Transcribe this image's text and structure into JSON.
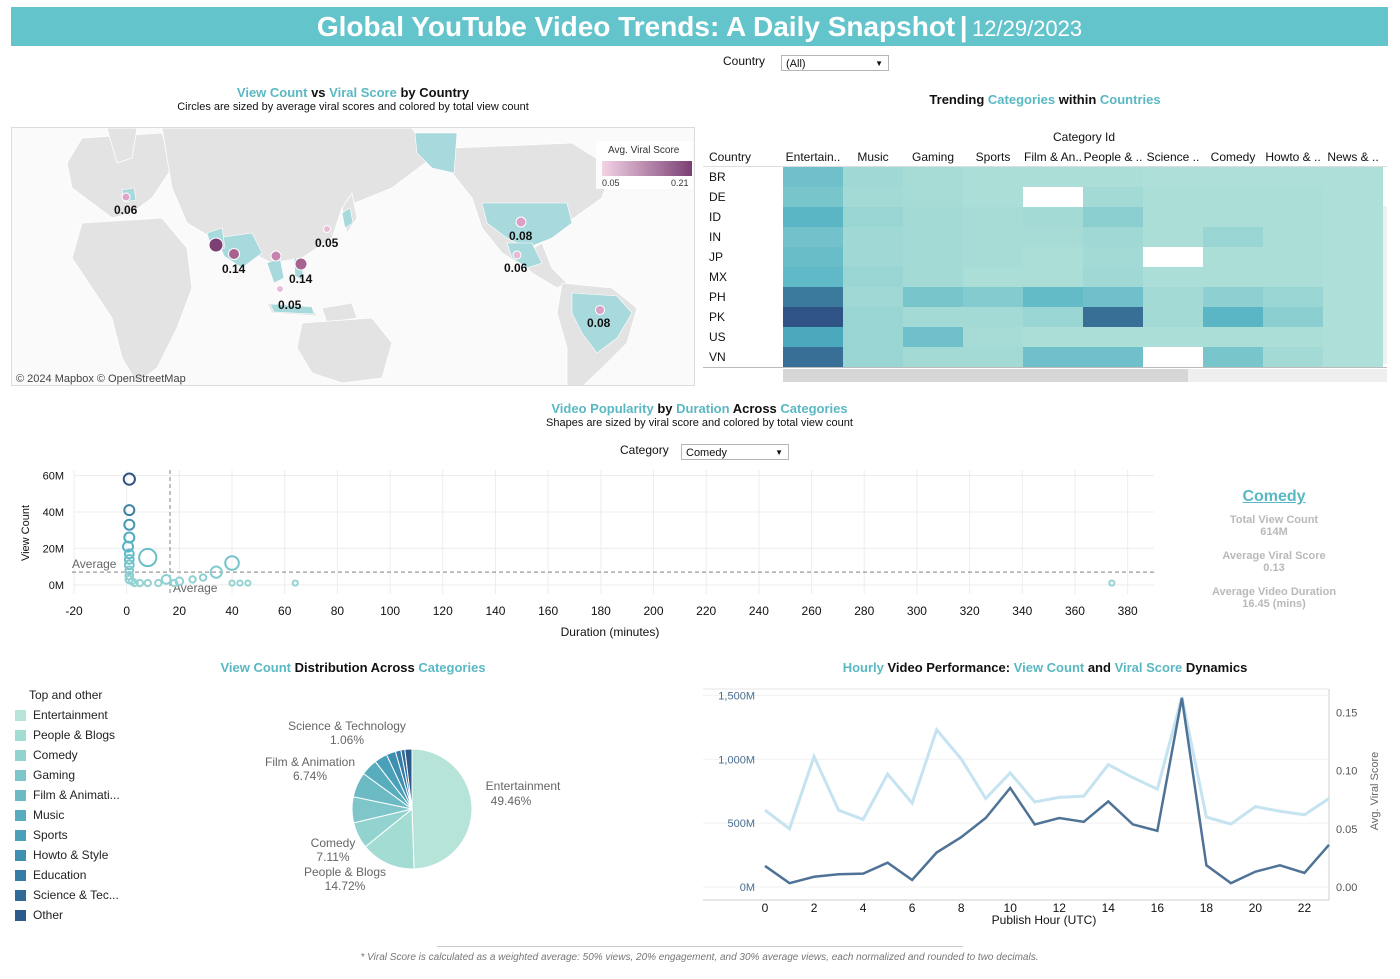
{
  "header": {
    "title": "Global YouTube Video Trends: A Daily Snapshot",
    "separator": "|",
    "date": "12/29/2023"
  },
  "filters": {
    "country": {
      "label": "Country",
      "value": "(All)"
    },
    "category": {
      "label": "Category",
      "value": "Comedy"
    }
  },
  "map": {
    "title_a": "View Count",
    "title_b": " vs ",
    "title_c": "Viral Score",
    "title_d": " by Country",
    "subtitle": "Circles are sized by average viral scores and colored by total view count",
    "legend_title": "Avg. Viral Score",
    "legend_min": "0.05",
    "legend_max": "0.21",
    "credits": "© 2024 Mapbox  © OpenStreetMap",
    "labels": [
      "0.06",
      "0.05",
      "0.08",
      "0.14",
      "0.14",
      "0.05",
      "0.06",
      "0.08"
    ],
    "colors": {
      "land": "#e2e2e2",
      "highlight": "#a6d9dc",
      "bubble_low": "#e6b3d3",
      "bubble_high": "#7b3f73"
    }
  },
  "heatmap": {
    "title_a": "Trending ",
    "title_b": "Categories",
    "title_c": " within ",
    "title_d": "Countries",
    "col_group": "Category Id",
    "row_header": "Country",
    "columns": [
      "Entertain..",
      "Music",
      "Gaming",
      "Sports",
      "Film & An..",
      "People & ..",
      "Science ..",
      "Comedy",
      "Howto & ..",
      "News & .."
    ],
    "rows": [
      "BR",
      "DE",
      "ID",
      "IN",
      "JP",
      "MX",
      "PH",
      "PK",
      "US",
      "VN"
    ]
  },
  "scatter": {
    "title_a": "Video Popularity",
    "title_b": " by ",
    "title_c": "Duration",
    "title_d": " Across ",
    "title_e": "Categories",
    "subtitle": "Shapes are sized by viral score and colored by total view count",
    "ylabel": "View Count",
    "xlabel": "Duration (minutes)",
    "avg_label_h": "Average",
    "avg_label_v": "Average",
    "yticks": [
      "60M",
      "40M",
      "20M",
      "0M"
    ],
    "xticks": [
      "-20",
      "0",
      "20",
      "40",
      "60",
      "80",
      "100",
      "120",
      "140",
      "160",
      "180",
      "200",
      "220",
      "240",
      "260",
      "280",
      "300",
      "320",
      "340",
      "360",
      "380"
    ]
  },
  "kpis": {
    "category": "Comedy",
    "total_label": "Total View Count",
    "total_value": "614M",
    "viral_label": "Average Viral Score",
    "viral_value": "0.13",
    "duration_label": "Average Video Duration",
    "duration_value": "16.45 (mins)"
  },
  "pie": {
    "title_a": "View Count",
    "title_b": " Distribution Across ",
    "title_c": "Categories",
    "legend_title": "Top and other",
    "legend": [
      "Entertainment",
      "People & Blogs",
      "Comedy",
      "Gaming",
      "Film & Animati...",
      "Music",
      "Sports",
      "Howto & Style",
      "Education",
      "Science & Tec...",
      "Other"
    ],
    "legend_colors": [
      "#b6e4d8",
      "#a3dcd3",
      "#92d2cf",
      "#7fc6cb",
      "#6bbac4",
      "#57adbd",
      "#4aa0b8",
      "#3f8fb0",
      "#357da6",
      "#2f6a99",
      "#2c5a8a"
    ],
    "labels": {
      "ent_name": "Entertainment",
      "ent_pct": "49.46%",
      "pb_name": "People & Blogs",
      "pb_pct": "14.72%",
      "com_name": "Comedy",
      "com_pct": "7.11%",
      "film_name": "Film & Animation",
      "film_pct": "6.74%",
      "sci_name": "Science & Technology",
      "sci_pct": "1.06%"
    }
  },
  "line": {
    "title_a": "Hourly",
    "title_b": " Video Performance: ",
    "title_c": "View Count",
    "title_d": " and ",
    "title_e": "Viral Score",
    "title_f": " Dynamics",
    "xlabel": "Publish Hour (UTC)",
    "y2label": "Avg. Viral Score",
    "yticks": [
      "1,500M",
      "1,000M",
      "500M",
      "0M"
    ],
    "y2ticks": [
      "0.15",
      "0.10",
      "0.05",
      "0.00"
    ],
    "xticks": [
      "0",
      "2",
      "4",
      "6",
      "8",
      "10",
      "12",
      "14",
      "16",
      "18",
      "20",
      "22"
    ]
  },
  "footnote": "* Viral Score is calculated as a weighted average: 50% views, 20% engagement, and 30% average views, each normalized and rounded to two decimals.",
  "chart_data": [
    {
      "type": "heatmap",
      "title": "Trending Categories within Countries",
      "rows": [
        "BR",
        "DE",
        "ID",
        "IN",
        "JP",
        "MX",
        "PH",
        "PK",
        "US",
        "VN"
      ],
      "columns": [
        "Entertain..",
        "Music",
        "Gaming",
        "Sports",
        "Film & An..",
        "People & ..",
        "Science ..",
        "Comedy",
        "Howto & ..",
        "News & .."
      ],
      "values": [
        [
          0.35,
          0.12,
          0.08,
          0.06,
          0.06,
          0.06,
          0.05,
          0.05,
          0.05,
          0.05
        ],
        [
          0.3,
          0.1,
          0.08,
          0.06,
          null,
          0.1,
          0.06,
          0.06,
          0.06,
          0.05
        ],
        [
          0.45,
          0.15,
          0.1,
          0.08,
          0.1,
          0.22,
          0.06,
          0.06,
          0.06,
          0.05
        ],
        [
          0.33,
          0.12,
          0.1,
          0.08,
          0.08,
          0.12,
          0.06,
          0.15,
          0.06,
          0.05
        ],
        [
          0.38,
          0.12,
          0.1,
          0.08,
          0.06,
          0.1,
          null,
          0.06,
          0.06,
          0.05
        ],
        [
          0.42,
          0.15,
          0.1,
          0.06,
          0.06,
          0.12,
          0.06,
          0.06,
          0.06,
          0.05
        ],
        [
          0.8,
          0.12,
          0.3,
          0.25,
          0.4,
          0.35,
          0.1,
          0.2,
          0.15,
          0.05
        ],
        [
          1.0,
          0.15,
          0.1,
          0.1,
          0.15,
          0.85,
          0.1,
          0.45,
          0.22,
          0.05
        ],
        [
          0.55,
          0.15,
          0.35,
          0.08,
          0.06,
          0.06,
          0.06,
          0.06,
          0.06,
          0.05
        ],
        [
          0.85,
          0.15,
          0.1,
          0.1,
          0.35,
          0.35,
          null,
          0.3,
          0.1,
          0.05
        ]
      ]
    },
    {
      "type": "scatter",
      "title": "Video Popularity by Duration Across Categories",
      "xlabel": "Duration (minutes)",
      "ylabel": "View Count",
      "xlim": [
        -20,
        390
      ],
      "ylim": [
        -5,
        63
      ],
      "reference_lines": {
        "x_average": 16.45,
        "y_average": 7
      },
      "points": [
        {
          "x": 1,
          "y": 58,
          "size": 0.3
        },
        {
          "x": 1,
          "y": 41,
          "size": 0.25
        },
        {
          "x": 1,
          "y": 33,
          "size": 0.25
        },
        {
          "x": 1,
          "y": 26,
          "size": 0.25
        },
        {
          "x": 0.5,
          "y": 21,
          "size": 0.25
        },
        {
          "x": 1,
          "y": 17,
          "size": 0.2
        },
        {
          "x": 1,
          "y": 14,
          "size": 0.2
        },
        {
          "x": 1,
          "y": 11,
          "size": 0.2
        },
        {
          "x": 1,
          "y": 8,
          "size": 0.15
        },
        {
          "x": 1,
          "y": 5,
          "size": 0.15
        },
        {
          "x": 1,
          "y": 3,
          "size": 0.15
        },
        {
          "x": 2,
          "y": 2,
          "size": 0.1
        },
        {
          "x": 3,
          "y": 1,
          "size": 0.1
        },
        {
          "x": 5,
          "y": 1,
          "size": 0.1
        },
        {
          "x": 8,
          "y": 1,
          "size": 0.1
        },
        {
          "x": 8,
          "y": 15,
          "size": 0.55
        },
        {
          "x": 12,
          "y": 1,
          "size": 0.1
        },
        {
          "x": 15,
          "y": 3,
          "size": 0.2
        },
        {
          "x": 18,
          "y": 1,
          "size": 0.1
        },
        {
          "x": 20,
          "y": 2,
          "size": 0.15
        },
        {
          "x": 25,
          "y": 3,
          "size": 0.1
        },
        {
          "x": 29,
          "y": 4,
          "size": 0.1
        },
        {
          "x": 34,
          "y": 7,
          "size": 0.3
        },
        {
          "x": 40,
          "y": 12,
          "size": 0.4
        },
        {
          "x": 40,
          "y": 1,
          "size": 0.05
        },
        {
          "x": 43,
          "y": 1,
          "size": 0.05
        },
        {
          "x": 46,
          "y": 1,
          "size": 0.05
        },
        {
          "x": 64,
          "y": 1,
          "size": 0.05
        },
        {
          "x": 374,
          "y": 1,
          "size": 0.05
        }
      ]
    },
    {
      "type": "pie",
      "title": "View Count Distribution Across Categories",
      "slices": [
        {
          "label": "Entertainment",
          "value": 49.46
        },
        {
          "label": "People & Blogs",
          "value": 14.72
        },
        {
          "label": "Comedy",
          "value": 7.11
        },
        {
          "label": "Gaming",
          "value": 7.0
        },
        {
          "label": "Film & Animation",
          "value": 6.74
        },
        {
          "label": "Music",
          "value": 4.5
        },
        {
          "label": "Sports",
          "value": 3.5
        },
        {
          "label": "Howto & Style",
          "value": 2.5
        },
        {
          "label": "Education",
          "value": 1.5
        },
        {
          "label": "Science & Technology",
          "value": 1.06
        },
        {
          "label": "Other",
          "value": 1.91
        }
      ]
    },
    {
      "type": "line",
      "title": "Hourly Video Performance: View Count and Viral Score Dynamics",
      "xlabel": "Publish Hour (UTC)",
      "x": [
        0,
        1,
        2,
        3,
        4,
        5,
        6,
        7,
        8,
        9,
        10,
        11,
        12,
        13,
        14,
        15,
        16,
        17,
        18,
        19,
        20,
        21,
        22,
        23
      ],
      "ylim": [
        0,
        1550
      ],
      "y2lim": [
        0,
        0.17
      ],
      "series": [
        {
          "name": "View Count",
          "axis": "left",
          "values": [
            165,
            30,
            80,
            100,
            105,
            190,
            55,
            270,
            390,
            540,
            775,
            490,
            540,
            510,
            670,
            490,
            440,
            1480,
            170,
            30,
            120,
            170,
            110,
            330
          ]
        },
        {
          "name": "Avg. Viral Score",
          "axis": "right",
          "values": [
            0.066,
            0.05,
            0.112,
            0.066,
            0.058,
            0.097,
            0.072,
            0.135,
            0.11,
            0.076,
            0.098,
            0.073,
            0.077,
            0.078,
            0.105,
            0.094,
            0.084,
            0.163,
            0.06,
            0.054,
            0.069,
            0.065,
            0.062,
            0.076
          ]
        }
      ]
    }
  ]
}
